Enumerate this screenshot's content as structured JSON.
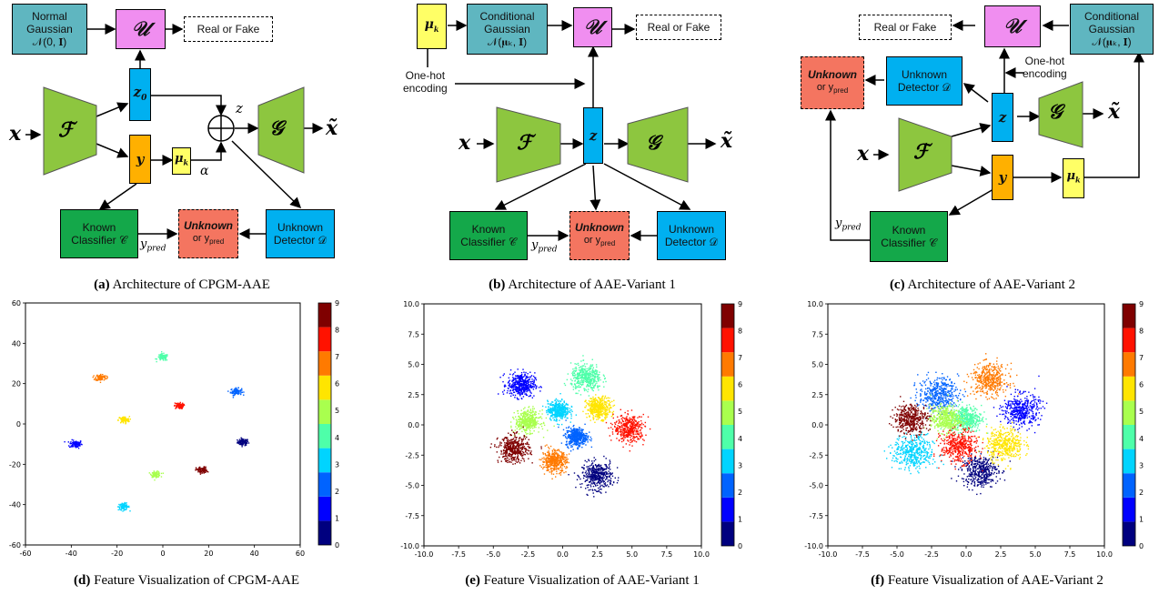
{
  "captions": {
    "a": {
      "tag": "(a)",
      "text": "Architecture of CPGM-AAE"
    },
    "b": {
      "tag": "(b)",
      "text": "Architecture of AAE-Variant 1"
    },
    "c": {
      "tag": "(c)",
      "text": "Architecture of AAE-Variant 2"
    },
    "d": {
      "tag": "(d)",
      "text": "Feature Visualization of CPGM-AAE"
    },
    "e": {
      "tag": "(e)",
      "text": "Feature Visualization of AAE-Variant 1"
    },
    "f": {
      "tag": "(f)",
      "text": "Feature Visualization of AAE-Variant 2"
    }
  },
  "labels": {
    "normal_gaussian_l1": "Normal",
    "normal_gaussian_l2": "Gaussian",
    "normal_gaussian_l3": "𝒩(0, 𝐈)",
    "cond_gaussian_l1": "Conditional",
    "cond_gaussian_l2": "Gaussian",
    "cond_gaussian_l3": "𝒩(𝛍ₖ, 𝐈)",
    "real_fake": "Real or Fake",
    "known_l1": "Known",
    "known_l2": "Classifier 𝒞",
    "unknown_det_l1": "Unknown",
    "unknown_det_l2": "Detector 𝒟",
    "unknown_bold": "Unknown",
    "or_ypred": "or y",
    "pred": "pred",
    "one_hot_l1": "One-hot",
    "one_hot_l2": "encoding",
    "U": "𝒰",
    "F": "ℱ",
    "G": "𝒢",
    "x": "x",
    "xt": "x̃",
    "z": "z",
    "z0": "z",
    "y": "y",
    "mu": "μ",
    "alpha": "α",
    "ypred_label": "y"
  },
  "colors": {
    "teal": "#5fb6c0",
    "pink": "#f08ef0",
    "green": "#8dc63f",
    "blue": "#00b0f0",
    "orange": "#ffb000",
    "yellow": "#ffff66",
    "darkgreen": "#14a84a",
    "red": "#f47560"
  },
  "chart_data": [
    {
      "type": "scatter",
      "id": "d",
      "xlim": [
        -60,
        60
      ],
      "ylim": [
        -60,
        60
      ],
      "xticks": [
        -60,
        -40,
        -20,
        0,
        20,
        40,
        60
      ],
      "yticks": [
        -60,
        -40,
        -20,
        0,
        20,
        40,
        60
      ],
      "colorbar_ticks": [
        "0",
        "1",
        "2",
        "3",
        "4",
        "5",
        "6",
        "7",
        "8",
        "9"
      ],
      "clusters": [
        {
          "class": 0,
          "x": 35,
          "y": -9,
          "spread": 1.2
        },
        {
          "class": 1,
          "x": -38,
          "y": -10,
          "spread": 1.4
        },
        {
          "class": 2,
          "x": 32,
          "y": 16,
          "spread": 1.2
        },
        {
          "class": 3,
          "x": -17,
          "y": -41,
          "spread": 1.2
        },
        {
          "class": 4,
          "x": 0,
          "y": 33,
          "spread": 1.2
        },
        {
          "class": 5,
          "x": -3,
          "y": -25,
          "spread": 1.0
        },
        {
          "class": 6,
          "x": -17,
          "y": 2,
          "spread": 1.2
        },
        {
          "class": 7,
          "x": -27,
          "y": 23,
          "spread": 1.2
        },
        {
          "class": 8,
          "x": 7,
          "y": 9,
          "spread": 1.0
        },
        {
          "class": 9,
          "x": 17,
          "y": -23,
          "spread": 1.2
        }
      ]
    },
    {
      "type": "scatter",
      "id": "e",
      "xlim": [
        -10,
        10
      ],
      "ylim": [
        -10,
        10
      ],
      "xticks": [
        -10.0,
        -7.5,
        -5.0,
        -2.5,
        0.0,
        2.5,
        5.0,
        7.5,
        10.0
      ],
      "yticks": [
        -10.0,
        -7.5,
        -5.0,
        -2.5,
        0.0,
        2.5,
        5.0,
        7.5,
        10.0
      ],
      "colorbar_ticks": [
        "0",
        "1",
        "2",
        "3",
        "4",
        "5",
        "6",
        "7",
        "8",
        "9"
      ],
      "clusters": [
        {
          "class": 0,
          "x": 2.5,
          "y": -4.2,
          "spread": 1.0
        },
        {
          "class": 1,
          "x": -3.0,
          "y": 3.3,
          "spread": 0.9
        },
        {
          "class": 2,
          "x": 1.0,
          "y": -1.0,
          "spread": 0.7
        },
        {
          "class": 3,
          "x": -0.3,
          "y": 1.2,
          "spread": 0.7
        },
        {
          "class": 4,
          "x": 1.7,
          "y": 3.9,
          "spread": 1.0
        },
        {
          "class": 5,
          "x": -2.5,
          "y": 0.3,
          "spread": 0.8
        },
        {
          "class": 6,
          "x": 2.6,
          "y": 1.4,
          "spread": 0.8
        },
        {
          "class": 7,
          "x": -0.6,
          "y": -3.0,
          "spread": 0.8
        },
        {
          "class": 8,
          "x": 4.8,
          "y": -0.3,
          "spread": 1.0
        },
        {
          "class": 9,
          "x": -3.5,
          "y": -2.0,
          "spread": 1.0
        }
      ]
    },
    {
      "type": "scatter",
      "id": "f",
      "xlim": [
        -10,
        10
      ],
      "ylim": [
        -10,
        10
      ],
      "xticks": [
        -10.0,
        -7.5,
        -5.0,
        -2.5,
        0.0,
        2.5,
        5.0,
        7.5,
        10.0
      ],
      "yticks": [
        -10.0,
        -7.5,
        -5.0,
        -2.5,
        0.0,
        2.5,
        5.0,
        7.5,
        10.0
      ],
      "colorbar_ticks": [
        "0",
        "1",
        "2",
        "3",
        "4",
        "5",
        "6",
        "7",
        "8",
        "9"
      ],
      "clusters": [
        {
          "class": 0,
          "x": 1.0,
          "y": -3.8,
          "spread": 1.2
        },
        {
          "class": 1,
          "x": 4.0,
          "y": 1.2,
          "spread": 1.2
        },
        {
          "class": 2,
          "x": -2.0,
          "y": 2.5,
          "spread": 1.3
        },
        {
          "class": 3,
          "x": -3.8,
          "y": -2.3,
          "spread": 1.3
        },
        {
          "class": 4,
          "x": 0.0,
          "y": 0.5,
          "spread": 1.0
        },
        {
          "class": 5,
          "x": -1.5,
          "y": 0.5,
          "spread": 1.0
        },
        {
          "class": 6,
          "x": 2.8,
          "y": -1.6,
          "spread": 1.2
        },
        {
          "class": 7,
          "x": 1.7,
          "y": 3.7,
          "spread": 1.2
        },
        {
          "class": 8,
          "x": -0.5,
          "y": -1.8,
          "spread": 1.2
        },
        {
          "class": 9,
          "x": -4.0,
          "y": 0.5,
          "spread": 1.1
        }
      ]
    }
  ]
}
